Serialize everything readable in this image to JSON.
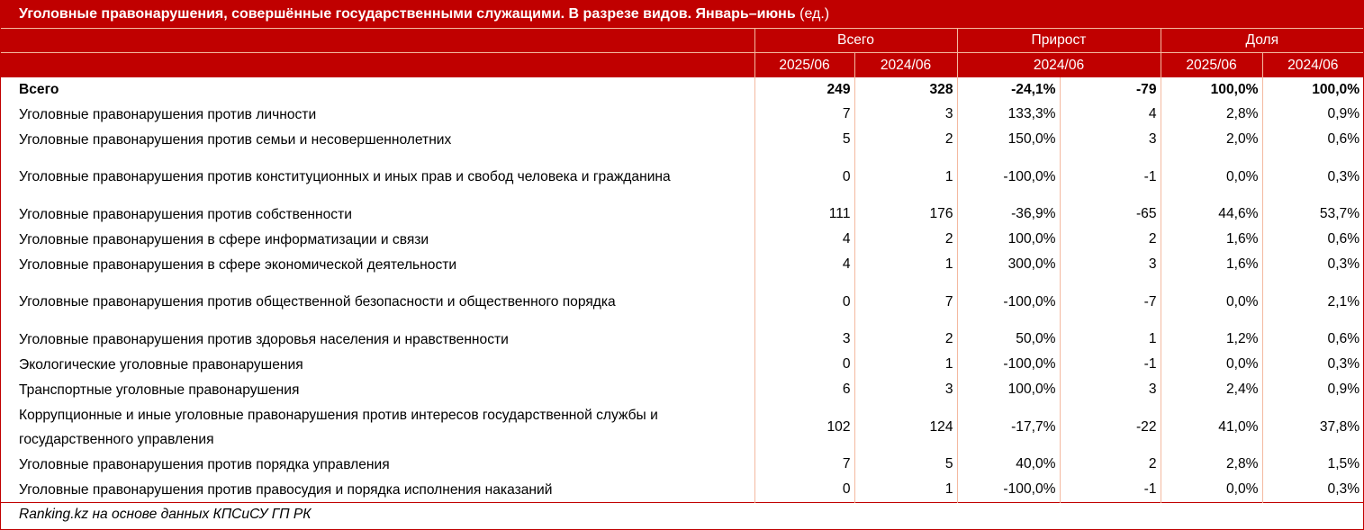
{
  "table_title": "Уголовные правонарушения, совершённые государственными служащими. В разрезе видов. Январь–июнь",
  "table_unit": "(ед.)",
  "groups": {
    "total": "Всего",
    "growth": "Прирост",
    "share": "Доля"
  },
  "subheaders": {
    "total_2025": "2025/06",
    "total_2024": "2024/06",
    "growth_2024": "2024/06",
    "share_2025": "2025/06",
    "share_2024": "2024/06"
  },
  "rows": [
    {
      "label": "Всего",
      "v2025": "249",
      "v2024": "328",
      "growth_pct": "-24,1%",
      "growth_abs": "-79",
      "share2025": "100,0%",
      "share2024": "100,0%"
    },
    {
      "label": "Уголовные правонарушения против личности",
      "v2025": "7",
      "v2024": "3",
      "growth_pct": "133,3%",
      "growth_abs": "4",
      "share2025": "2,8%",
      "share2024": "0,9%"
    },
    {
      "label": "Уголовные правонарушения против семьи и несовершеннолетних",
      "v2025": "5",
      "v2024": "2",
      "growth_pct": "150,0%",
      "growth_abs": "3",
      "share2025": "2,0%",
      "share2024": "0,6%"
    },
    {
      "label": "Уголовные правонарушения против конституционных и иных прав и свобод человека и гражданина",
      "v2025": "0",
      "v2024": "1",
      "growth_pct": "-100,0%",
      "growth_abs": "-1",
      "share2025": "0,0%",
      "share2024": "0,3%"
    },
    {
      "label": "Уголовные правонарушения против собственности",
      "v2025": "111",
      "v2024": "176",
      "growth_pct": "-36,9%",
      "growth_abs": "-65",
      "share2025": "44,6%",
      "share2024": "53,7%"
    },
    {
      "label": "Уголовные правонарушения в сфере информатизации и связи",
      "v2025": "4",
      "v2024": "2",
      "growth_pct": "100,0%",
      "growth_abs": "2",
      "share2025": "1,6%",
      "share2024": "0,6%"
    },
    {
      "label": "Уголовные правонарушения в сфере экономической деятельности",
      "v2025": "4",
      "v2024": "1",
      "growth_pct": "300,0%",
      "growth_abs": "3",
      "share2025": "1,6%",
      "share2024": "0,3%"
    },
    {
      "label": "Уголовные правонарушения против общественной безопасности и общественного порядка",
      "v2025": "0",
      "v2024": "7",
      "growth_pct": "-100,0%",
      "growth_abs": "-7",
      "share2025": "0,0%",
      "share2024": "2,1%"
    },
    {
      "label": "Уголовные правонарушения против здоровья населения и нравственности",
      "v2025": "3",
      "v2024": "2",
      "growth_pct": "50,0%",
      "growth_abs": "1",
      "share2025": "1,2%",
      "share2024": "0,6%"
    },
    {
      "label": "Экологические уголовные правонарушения",
      "v2025": "0",
      "v2024": "1",
      "growth_pct": "-100,0%",
      "growth_abs": "-1",
      "share2025": "0,0%",
      "share2024": "0,3%"
    },
    {
      "label": "Транспортные уголовные правонарушения",
      "v2025": "6",
      "v2024": "3",
      "growth_pct": "100,0%",
      "growth_abs": "3",
      "share2025": "2,4%",
      "share2024": "0,9%"
    },
    {
      "label": "Коррупционные и иные уголовные правонарушения против интересов государственной службы и государственного управления",
      "v2025": "102",
      "v2024": "124",
      "growth_pct": "-17,7%",
      "growth_abs": "-22",
      "share2025": "41,0%",
      "share2024": "37,8%"
    },
    {
      "label": "Уголовные правонарушения против порядка управления",
      "v2025": "7",
      "v2024": "5",
      "growth_pct": "40,0%",
      "growth_abs": "2",
      "share2025": "2,8%",
      "share2024": "1,5%"
    },
    {
      "label": "Уголовные правонарушения против правосудия и порядка исполнения наказаний",
      "v2025": "0",
      "v2024": "1",
      "growth_pct": "-100,0%",
      "growth_abs": "-1",
      "share2025": "0,0%",
      "share2024": "0,3%"
    }
  ],
  "source": "Ranking.kz на основе данных КПСиСУ ГП РК",
  "colors": {
    "header_bg": "#c00000",
    "header_text": "#ffffff",
    "grid": "#f4b9a0"
  }
}
